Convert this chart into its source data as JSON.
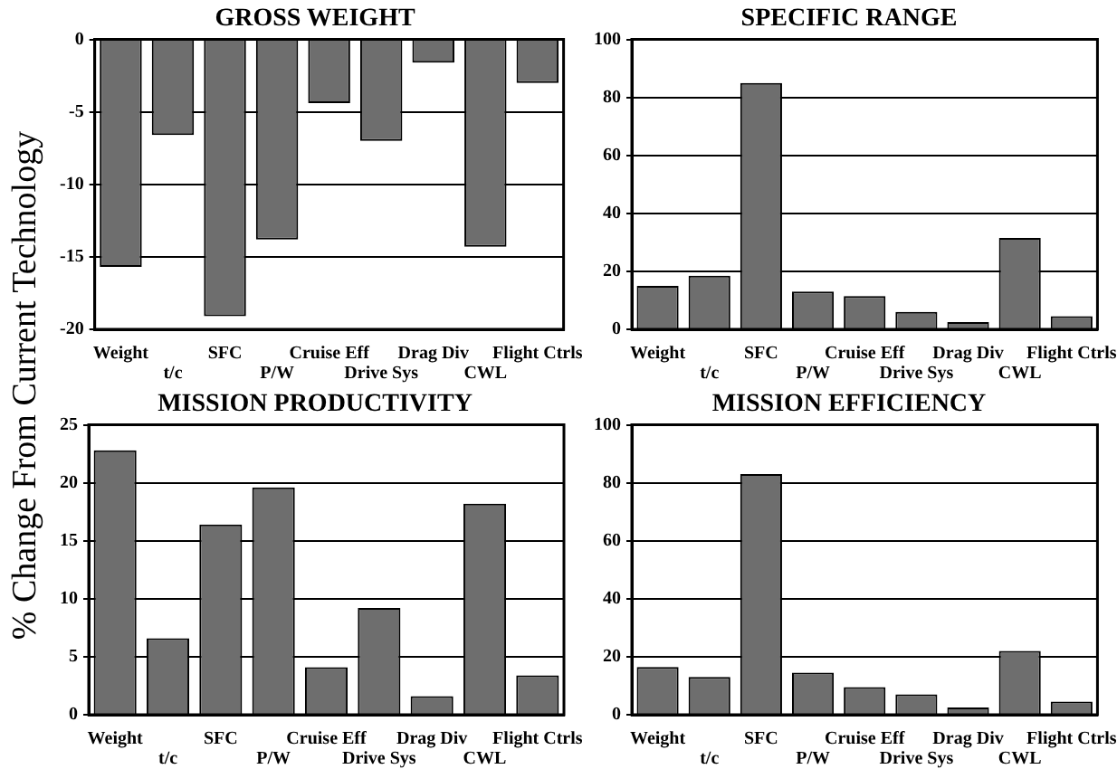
{
  "chart_data": [
    {
      "type": "bar",
      "title": "GROSS WEIGHT",
      "ylabel": "% Change From Current Technology",
      "categories": [
        "Weight",
        "t/c",
        "SFC",
        "P/W",
        "Cruise Eff",
        "Drive Sys",
        "Drag Div",
        "CWL",
        "Flight Ctrls"
      ],
      "values": [
        -15.7,
        -6.6,
        -19.1,
        -13.8,
        -4.4,
        -7.0,
        -1.6,
        -14.3,
        -3.0
      ],
      "color": "#6e6e6e",
      "ylim": [
        -20,
        0
      ],
      "yticks": [
        0,
        -5,
        -10,
        -15,
        -20
      ],
      "grid": "y",
      "legend": false
    },
    {
      "type": "bar",
      "title": "SPECIFIC RANGE",
      "categories": [
        "Weight",
        "t/c",
        "SFC",
        "P/W",
        "Cruise Eff",
        "Drive Sys",
        "Drag Div",
        "CWL",
        "Flight Ctrls"
      ],
      "values": [
        15,
        18.5,
        85,
        13,
        11.5,
        6,
        2.5,
        31.5,
        4.5
      ],
      "color": "#6e6e6e",
      "ylim": [
        0,
        100
      ],
      "yticks": [
        0,
        20,
        40,
        60,
        80,
        100
      ],
      "grid": "y",
      "legend": false
    },
    {
      "type": "bar",
      "title": "MISSION PRODUCTIVITY",
      "categories": [
        "Weight",
        "t/c",
        "SFC",
        "P/W",
        "Cruise Eff",
        "Drive Sys",
        "Drag Div",
        "CWL",
        "Flight Ctrls"
      ],
      "values": [
        22.8,
        6.6,
        16.4,
        19.6,
        4.1,
        9.2,
        1.6,
        18.2,
        3.4
      ],
      "color": "#6e6e6e",
      "ylim": [
        0,
        25
      ],
      "yticks": [
        0,
        5,
        10,
        15,
        20,
        25
      ],
      "grid": "y",
      "legend": false
    },
    {
      "type": "bar",
      "title": "MISSION EFFICIENCY",
      "categories": [
        "Weight",
        "t/c",
        "SFC",
        "P/W",
        "Cruise Eff",
        "Drive Sys",
        "Drag Div",
        "CWL",
        "Flight Ctrls"
      ],
      "values": [
        16.5,
        13,
        83,
        14.5,
        9.5,
        7,
        2.5,
        22,
        4.5
      ],
      "color": "#6e6e6e",
      "ylim": [
        0,
        100
      ],
      "yticks": [
        0,
        20,
        40,
        60,
        80,
        100
      ],
      "grid": "y",
      "legend": false
    }
  ]
}
